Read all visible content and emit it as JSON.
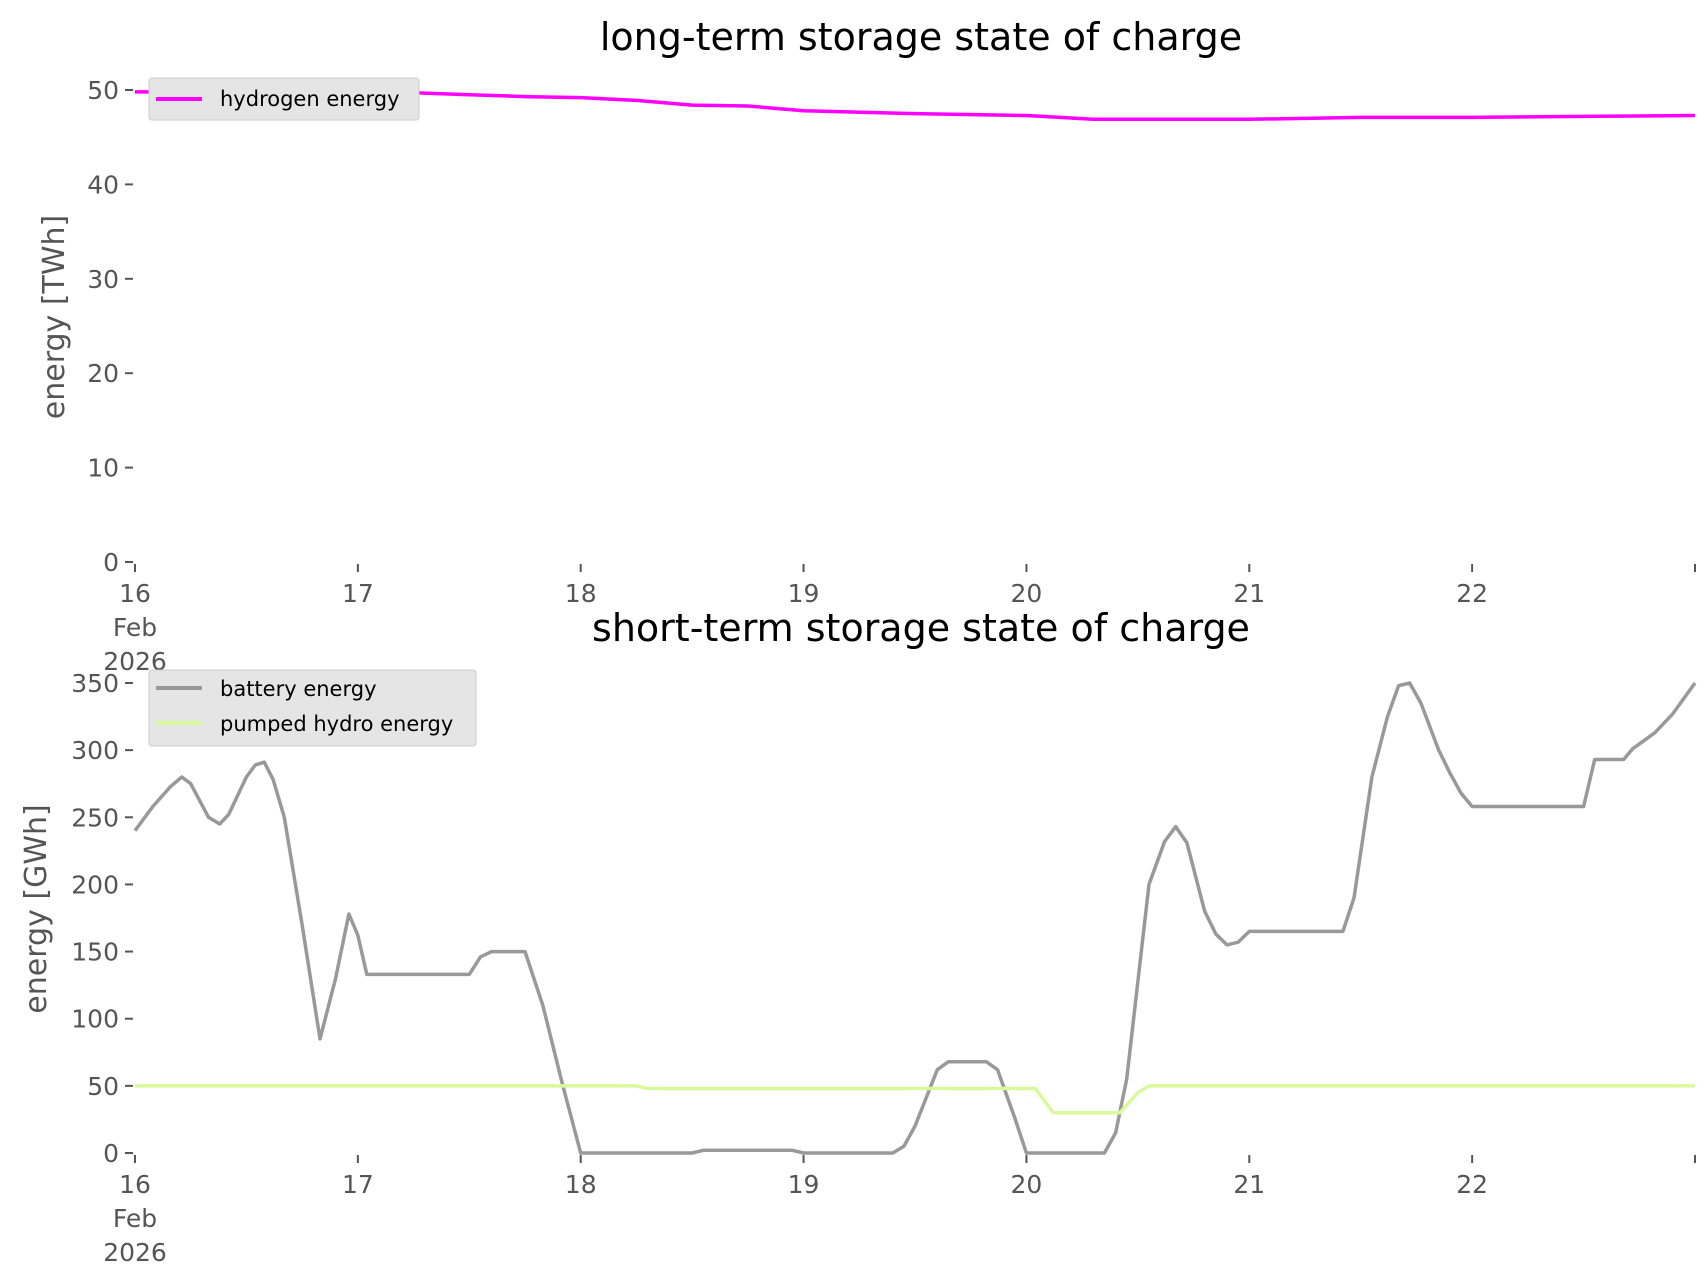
{
  "colors": {
    "hydrogen": "#ff00ff",
    "battery": "#999999",
    "pumped_hydro": "#d9f99d",
    "legend_bg": "#e5e5e5",
    "tick": "#555555"
  },
  "chart_data": [
    {
      "type": "line",
      "title": "long-term storage state of charge",
      "ylabel": "energy [TWh]",
      "xlim": [
        0,
        7
      ],
      "ylim": [
        0,
        50
      ],
      "yticks": [
        0,
        10,
        20,
        30,
        40,
        50
      ],
      "xticks": [
        {
          "x": 0,
          "lines": [
            "16",
            "Feb",
            "2026"
          ]
        },
        {
          "x": 1,
          "lines": [
            "17"
          ]
        },
        {
          "x": 2,
          "lines": [
            "18"
          ]
        },
        {
          "x": 3,
          "lines": [
            "19"
          ]
        },
        {
          "x": 4,
          "lines": [
            "20"
          ]
        },
        {
          "x": 5,
          "lines": [
            "21"
          ]
        },
        {
          "x": 6,
          "lines": [
            "22"
          ]
        },
        {
          "x": 7,
          "lines": [
            ""
          ]
        }
      ],
      "grid": false,
      "legend_position": "top-left",
      "series": [
        {
          "name": "hydrogen energy",
          "color_key": "hydrogen",
          "points": [
            [
              0,
              49.8
            ],
            [
              0.5,
              49.8
            ],
            [
              1.0,
              49.7
            ],
            [
              1.25,
              49.7
            ],
            [
              1.5,
              49.5
            ],
            [
              1.75,
              49.3
            ],
            [
              2.0,
              49.2
            ],
            [
              2.25,
              48.9
            ],
            [
              2.5,
              48.4
            ],
            [
              2.75,
              48.3
            ],
            [
              3.0,
              47.8
            ],
            [
              3.5,
              47.5
            ],
            [
              4.0,
              47.3
            ],
            [
              4.3,
              46.9
            ],
            [
              4.6,
              46.9
            ],
            [
              5.0,
              46.9
            ],
            [
              5.5,
              47.1
            ],
            [
              6.0,
              47.1
            ],
            [
              6.5,
              47.2
            ],
            [
              7.0,
              47.3
            ]
          ]
        }
      ]
    },
    {
      "type": "line",
      "title": "short-term storage state of charge",
      "ylabel": "energy [GWh]",
      "xlim": [
        0,
        7
      ],
      "ylim": [
        0,
        350
      ],
      "yticks": [
        0,
        50,
        100,
        150,
        200,
        250,
        300,
        350
      ],
      "xticks": [
        {
          "x": 0,
          "lines": [
            "16",
            "Feb",
            "2026"
          ]
        },
        {
          "x": 1,
          "lines": [
            "17"
          ]
        },
        {
          "x": 2,
          "lines": [
            "18"
          ]
        },
        {
          "x": 3,
          "lines": [
            "19"
          ]
        },
        {
          "x": 4,
          "lines": [
            "20"
          ]
        },
        {
          "x": 5,
          "lines": [
            "21"
          ]
        },
        {
          "x": 6,
          "lines": [
            "22"
          ]
        },
        {
          "x": 7,
          "lines": [
            ""
          ]
        }
      ],
      "grid": false,
      "legend_position": "top-left",
      "series": [
        {
          "name": "battery energy",
          "color_key": "battery",
          "points": [
            [
              0,
              240
            ],
            [
              0.08,
              258
            ],
            [
              0.16,
              273
            ],
            [
              0.21,
              280
            ],
            [
              0.25,
              275
            ],
            [
              0.33,
              250
            ],
            [
              0.38,
              245
            ],
            [
              0.42,
              252
            ],
            [
              0.5,
              280
            ],
            [
              0.54,
              289
            ],
            [
              0.58,
              291
            ],
            [
              0.62,
              278
            ],
            [
              0.67,
              250
            ],
            [
              0.75,
              170
            ],
            [
              0.83,
              85
            ],
            [
              0.9,
              130
            ],
            [
              0.96,
              178
            ],
            [
              1.0,
              162
            ],
            [
              1.04,
              133
            ],
            [
              1.5,
              133
            ],
            [
              1.55,
              146
            ],
            [
              1.6,
              150
            ],
            [
              1.75,
              150
            ],
            [
              1.83,
              110
            ],
            [
              1.92,
              50
            ],
            [
              2.0,
              0
            ],
            [
              2.5,
              0
            ],
            [
              2.55,
              2
            ],
            [
              2.95,
              2
            ],
            [
              3.0,
              0
            ],
            [
              3.4,
              0
            ],
            [
              3.45,
              5
            ],
            [
              3.5,
              20
            ],
            [
              3.6,
              62
            ],
            [
              3.65,
              68
            ],
            [
              3.82,
              68
            ],
            [
              3.87,
              62
            ],
            [
              3.95,
              25
            ],
            [
              4.0,
              0
            ],
            [
              4.35,
              0
            ],
            [
              4.4,
              15
            ],
            [
              4.45,
              55
            ],
            [
              4.55,
              200
            ],
            [
              4.62,
              232
            ],
            [
              4.67,
              243
            ],
            [
              4.72,
              231
            ],
            [
              4.8,
              180
            ],
            [
              4.85,
              163
            ],
            [
              4.9,
              155
            ],
            [
              4.95,
              157
            ],
            [
              5.0,
              165
            ],
            [
              5.42,
              165
            ],
            [
              5.47,
              190
            ],
            [
              5.55,
              280
            ],
            [
              5.62,
              325
            ],
            [
              5.67,
              348
            ],
            [
              5.72,
              350
            ],
            [
              5.77,
              335
            ],
            [
              5.85,
              300
            ],
            [
              5.9,
              283
            ],
            [
              5.95,
              268
            ],
            [
              6.0,
              258
            ],
            [
              6.5,
              258
            ],
            [
              6.55,
              293
            ],
            [
              6.68,
              293
            ],
            [
              6.72,
              301
            ],
            [
              6.82,
              313
            ],
            [
              6.9,
              327
            ],
            [
              7.0,
              350
            ]
          ]
        },
        {
          "name": "pumped hydro energy",
          "color_key": "pumped_hydro",
          "points": [
            [
              0,
              50
            ],
            [
              2.25,
              50
            ],
            [
              2.3,
              48
            ],
            [
              4.04,
              48
            ],
            [
              4.12,
              30
            ],
            [
              4.42,
              30
            ],
            [
              4.5,
              45
            ],
            [
              4.55,
              50
            ],
            [
              7.0,
              50
            ]
          ]
        }
      ]
    }
  ]
}
